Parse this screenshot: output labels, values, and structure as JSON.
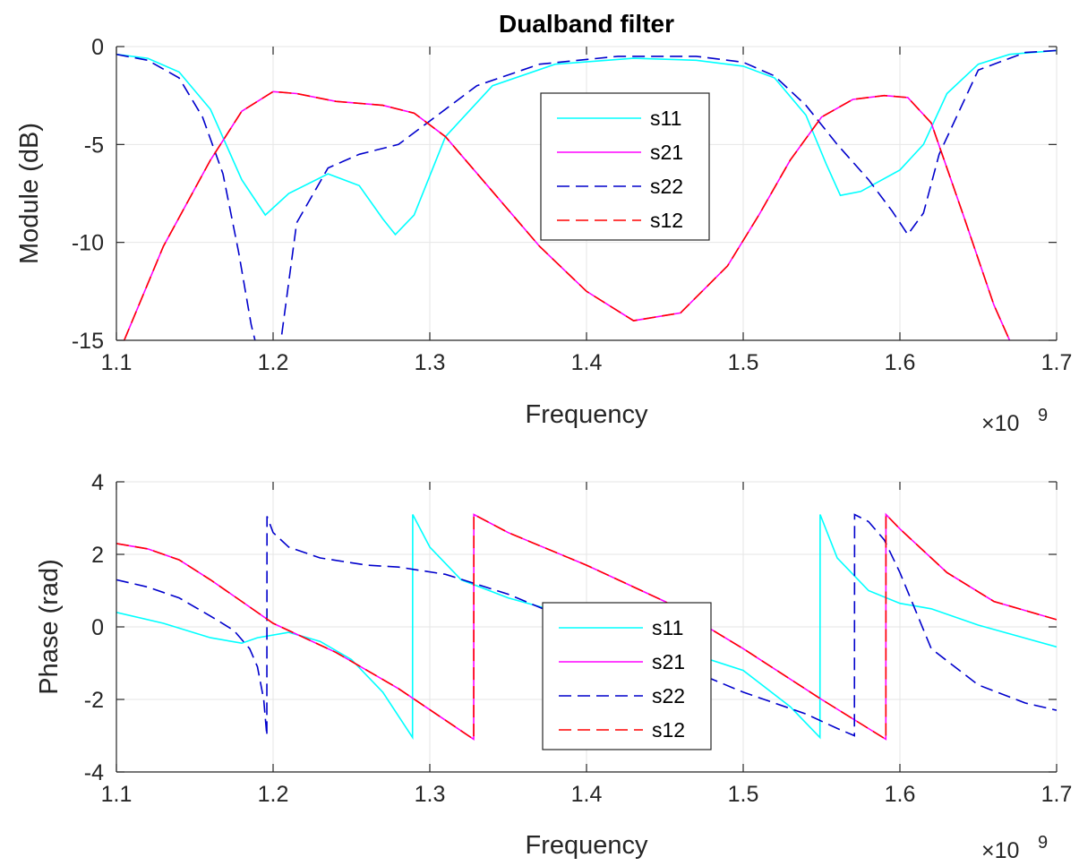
{
  "chart_data": [
    {
      "type": "line",
      "title": "Dualband filter",
      "xlabel": "Frequency",
      "ylabel": "Module (dB)",
      "x_multiplier": {
        "base": "×10",
        "exponent": "9"
      },
      "xlim": [
        1.1,
        1.7
      ],
      "ylim": [
        -15,
        0
      ],
      "xticks": [
        1.1,
        1.2,
        1.3,
        1.4,
        1.5,
        1.6,
        1.7
      ],
      "xtick_labels": [
        "1.1",
        "1.2",
        "1.3",
        "1.4",
        "1.5",
        "1.6",
        "1.7"
      ],
      "yticks": [
        -15,
        -10,
        -5,
        0
      ],
      "ytick_labels": [
        "-15",
        "-10",
        "-5",
        "0"
      ],
      "grid": true,
      "legend_position": "center-right",
      "series": [
        {
          "name": "s11",
          "color": "#00ffff",
          "dash": "solid",
          "x": [
            1.1,
            1.12,
            1.14,
            1.16,
            1.18,
            1.195,
            1.21,
            1.235,
            1.255,
            1.27,
            1.278,
            1.29,
            1.31,
            1.34,
            1.38,
            1.43,
            1.47,
            1.5,
            1.52,
            1.54,
            1.553,
            1.562,
            1.575,
            1.6,
            1.615,
            1.63,
            1.65,
            1.67,
            1.7
          ],
          "y": [
            -0.4,
            -0.6,
            -1.3,
            -3.2,
            -6.8,
            -8.6,
            -7.5,
            -6.5,
            -7.1,
            -8.8,
            -9.6,
            -8.6,
            -4.6,
            -2.0,
            -0.9,
            -0.6,
            -0.7,
            -1.0,
            -1.6,
            -3.5,
            -6.0,
            -7.6,
            -7.4,
            -6.3,
            -5.0,
            -2.4,
            -0.9,
            -0.4,
            -0.2
          ]
        },
        {
          "name": "s21",
          "color": "#ff00ff",
          "dash": "solid",
          "x": [
            1.105,
            1.13,
            1.16,
            1.18,
            1.2,
            1.215,
            1.24,
            1.27,
            1.29,
            1.31,
            1.34,
            1.37,
            1.4,
            1.43,
            1.46,
            1.49,
            1.51,
            1.53,
            1.55,
            1.57,
            1.59,
            1.605,
            1.62,
            1.64,
            1.66,
            1.67
          ],
          "y": [
            -15,
            -10.2,
            -5.8,
            -3.3,
            -2.3,
            -2.4,
            -2.8,
            -3.0,
            -3.4,
            -4.6,
            -7.4,
            -10.2,
            -12.5,
            -14.0,
            -13.6,
            -11.2,
            -8.6,
            -5.8,
            -3.6,
            -2.7,
            -2.5,
            -2.6,
            -3.9,
            -8.5,
            -13.2,
            -15
          ]
        },
        {
          "name": "s22",
          "color": "#0000cc",
          "dash": "dashed",
          "x": [
            1.1,
            1.12,
            1.14,
            1.155,
            1.168,
            1.178,
            1.186,
            1.19,
            1.2,
            1.205,
            1.215,
            1.235,
            1.255,
            1.28,
            1.3,
            1.33,
            1.37,
            1.42,
            1.47,
            1.5,
            1.52,
            1.54,
            1.56,
            1.58,
            1.595,
            1.605,
            1.615,
            1.625,
            1.65,
            1.68,
            1.7
          ],
          "y": [
            -0.4,
            -0.7,
            -1.6,
            -3.6,
            -6.5,
            -10.5,
            -14.2,
            -15.5,
            -17.0,
            -15.0,
            -9.0,
            -6.2,
            -5.5,
            -5.0,
            -3.8,
            -2.0,
            -0.9,
            -0.5,
            -0.5,
            -0.8,
            -1.5,
            -3.0,
            -5.0,
            -6.8,
            -8.4,
            -9.6,
            -8.5,
            -5.5,
            -1.2,
            -0.3,
            -0.2
          ]
        },
        {
          "name": "s12",
          "color": "#ff0000",
          "dash": "dashed",
          "x": [
            1.105,
            1.13,
            1.16,
            1.18,
            1.2,
            1.215,
            1.24,
            1.27,
            1.29,
            1.31,
            1.34,
            1.37,
            1.4,
            1.43,
            1.46,
            1.49,
            1.51,
            1.53,
            1.55,
            1.57,
            1.59,
            1.605,
            1.62,
            1.64,
            1.66,
            1.67
          ],
          "y": [
            -15,
            -10.2,
            -5.8,
            -3.3,
            -2.3,
            -2.4,
            -2.8,
            -3.0,
            -3.4,
            -4.6,
            -7.4,
            -10.2,
            -12.5,
            -14.0,
            -13.6,
            -11.2,
            -8.6,
            -5.8,
            -3.6,
            -2.7,
            -2.5,
            -2.6,
            -3.9,
            -8.5,
            -13.2,
            -15
          ]
        }
      ]
    },
    {
      "type": "line",
      "title": "",
      "xlabel": "Frequency",
      "ylabel": "Phase (rad)",
      "x_multiplier": {
        "base": "×10",
        "exponent": "9"
      },
      "xlim": [
        1.1,
        1.7
      ],
      "ylim": [
        -4,
        4
      ],
      "xticks": [
        1.1,
        1.2,
        1.3,
        1.4,
        1.5,
        1.6,
        1.7
      ],
      "xtick_labels": [
        "1.1",
        "1.2",
        "1.3",
        "1.4",
        "1.5",
        "1.6",
        "1.7"
      ],
      "yticks": [
        -4,
        -2,
        0,
        2,
        4
      ],
      "ytick_labels": [
        "-4",
        "-2",
        "0",
        "2",
        "4"
      ],
      "grid": true,
      "legend_position": "center-right",
      "series": [
        {
          "name": "s11",
          "color": "#00ffff",
          "dash": "solid",
          "x": [
            1.1,
            1.13,
            1.16,
            1.18,
            1.19,
            1.21,
            1.23,
            1.25,
            1.27,
            1.289,
            1.2891,
            1.3,
            1.32,
            1.35,
            1.4,
            1.45,
            1.5,
            1.53,
            1.549,
            1.5491,
            1.56,
            1.58,
            1.6,
            1.62,
            1.65,
            1.7
          ],
          "y": [
            0.4,
            0.1,
            -0.3,
            -0.45,
            -0.3,
            -0.15,
            -0.4,
            -0.9,
            -1.8,
            -3.05,
            3.1,
            2.2,
            1.3,
            0.8,
            0.2,
            -0.5,
            -1.2,
            -2.2,
            -3.05,
            3.1,
            1.9,
            1.0,
            0.65,
            0.5,
            0.05,
            -0.55
          ]
        },
        {
          "name": "s21",
          "color": "#ff00ff",
          "dash": "solid",
          "x": [
            1.1,
            1.12,
            1.14,
            1.16,
            1.18,
            1.2,
            1.24,
            1.28,
            1.328,
            1.3281,
            1.35,
            1.4,
            1.45,
            1.5,
            1.55,
            1.591,
            1.5911,
            1.6,
            1.63,
            1.66,
            1.7
          ],
          "y": [
            2.3,
            2.15,
            1.85,
            1.3,
            0.7,
            0.1,
            -0.7,
            -1.7,
            -3.1,
            3.1,
            2.6,
            1.7,
            0.7,
            -0.6,
            -2.0,
            -3.1,
            3.1,
            2.7,
            1.5,
            0.7,
            0.2
          ]
        },
        {
          "name": "s22",
          "color": "#0000cc",
          "dash": "dashed",
          "x": [
            1.1,
            1.12,
            1.14,
            1.16,
            1.175,
            1.185,
            1.19,
            1.194,
            1.196,
            1.1961,
            1.2,
            1.21,
            1.23,
            1.26,
            1.28,
            1.31,
            1.35,
            1.4,
            1.45,
            1.5,
            1.54,
            1.55,
            1.56,
            1.571,
            1.5711,
            1.58,
            1.59,
            1.6,
            1.62,
            1.65,
            1.68,
            1.7
          ],
          "y": [
            1.3,
            1.1,
            0.8,
            0.3,
            -0.1,
            -0.6,
            -1.1,
            -2.0,
            -3.0,
            3.05,
            2.6,
            2.2,
            1.9,
            1.7,
            1.65,
            1.45,
            0.9,
            0.0,
            -0.9,
            -1.8,
            -2.4,
            -2.6,
            -2.8,
            -3.0,
            3.1,
            2.9,
            2.4,
            1.5,
            -0.6,
            -1.6,
            -2.1,
            -2.3
          ]
        },
        {
          "name": "s12",
          "color": "#ff0000",
          "dash": "dashed",
          "x": [
            1.1,
            1.12,
            1.14,
            1.16,
            1.18,
            1.2,
            1.24,
            1.28,
            1.328,
            1.3281,
            1.35,
            1.4,
            1.45,
            1.5,
            1.55,
            1.591,
            1.5911,
            1.6,
            1.63,
            1.66,
            1.7
          ],
          "y": [
            2.3,
            2.15,
            1.85,
            1.3,
            0.7,
            0.1,
            -0.7,
            -1.7,
            -3.1,
            3.1,
            2.6,
            1.7,
            0.7,
            -0.6,
            -2.0,
            -3.1,
            3.1,
            2.7,
            1.5,
            0.7,
            0.2
          ]
        }
      ]
    }
  ]
}
